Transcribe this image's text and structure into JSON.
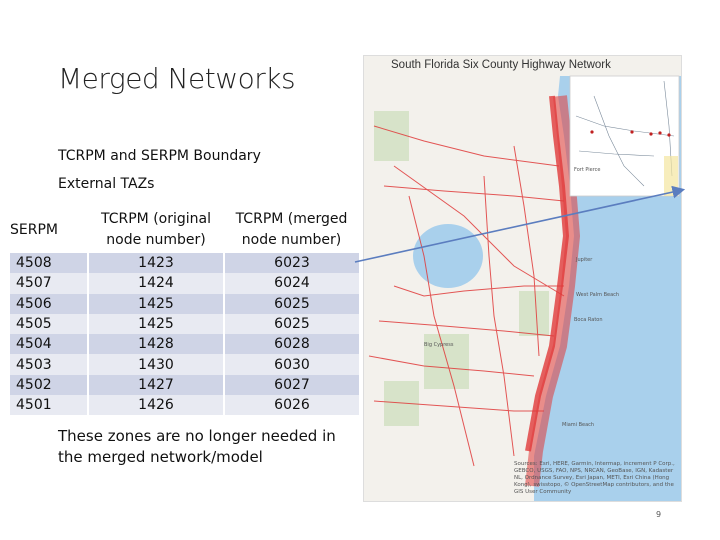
{
  "slide": {
    "title": "Merged Networks",
    "subtitle_line1": "TCRPM and SERPM Boundary",
    "subtitle_line2": "External TAZs",
    "note": "These zones are no longer needed in the merged network/model",
    "page_number": "9"
  },
  "table": {
    "headers": [
      "SERPM",
      "TCRPM (original node number)",
      "TCRPM (merged node number)"
    ],
    "rows": [
      [
        "4508",
        "1423",
        "6023"
      ],
      [
        "4507",
        "1424",
        "6024"
      ],
      [
        "4506",
        "1425",
        "6025"
      ],
      [
        "4505",
        "1425",
        "6025"
      ],
      [
        "4504",
        "1428",
        "6028"
      ],
      [
        "4503",
        "1430",
        "6030"
      ],
      [
        "4502",
        "1427",
        "6027"
      ],
      [
        "4501",
        "1426",
        "6026"
      ]
    ]
  },
  "map": {
    "title": "South Florida Six County Highway Network",
    "labels": [
      "Fort Pierce",
      "Jupiter",
      "Boca Raton",
      "West Palm Beach",
      "Big Cypress",
      "Miami Beach"
    ],
    "attribution": "Sources: Esri, HERE, Garmin, Intermap, increment P Corp., GEBCO, USGS, FAO, NPS, NRCAN, GeoBase, IGN, Kadaster NL, Ordnance Survey, Esri Japan, METI, Esri China (Hong Kong), swisstopo, © OpenStreetMap contributors, and the GIS User Community",
    "colors": {
      "road": "#e03a3a",
      "water": "#a9d0ec",
      "land": "#f3f1ec",
      "park": "#cfe0c0"
    }
  }
}
